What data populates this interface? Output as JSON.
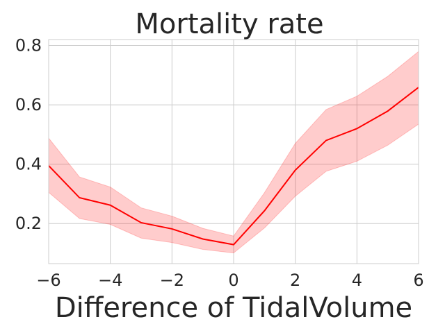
{
  "chart_data": {
    "type": "line",
    "title": "Mortality rate",
    "xlabel": "Difference of TidalVolume",
    "ylabel": "",
    "xlim": [
      -6,
      6
    ],
    "ylim": [
      0.065,
      0.82
    ],
    "xticks": [
      -6,
      -4,
      -2,
      0,
      2,
      4,
      6
    ],
    "xtick_labels": [
      "−6",
      "−4",
      "−2",
      "0",
      "2",
      "4",
      "6"
    ],
    "yticks": [
      0.2,
      0.4,
      0.6,
      0.8
    ],
    "ytick_labels": [
      "0.2",
      "0.4",
      "0.6",
      "0.8"
    ],
    "grid": true,
    "series": [
      {
        "name": "mortality",
        "color": "#ff0000",
        "band_color": "#ff0000",
        "x": [
          -6,
          -5,
          -4,
          -3,
          -2,
          -1,
          0,
          1,
          2,
          3,
          4,
          5,
          6
        ],
        "y": [
          0.395,
          0.287,
          0.262,
          0.203,
          0.182,
          0.148,
          0.129,
          0.243,
          0.38,
          0.48,
          0.52,
          0.579,
          0.659
        ],
        "lower": [
          0.305,
          0.217,
          0.197,
          0.151,
          0.136,
          0.113,
          0.101,
          0.185,
          0.292,
          0.376,
          0.41,
          0.464,
          0.535
        ],
        "upper": [
          0.488,
          0.357,
          0.323,
          0.253,
          0.225,
          0.184,
          0.158,
          0.304,
          0.47,
          0.584,
          0.629,
          0.696,
          0.78
        ]
      }
    ]
  }
}
